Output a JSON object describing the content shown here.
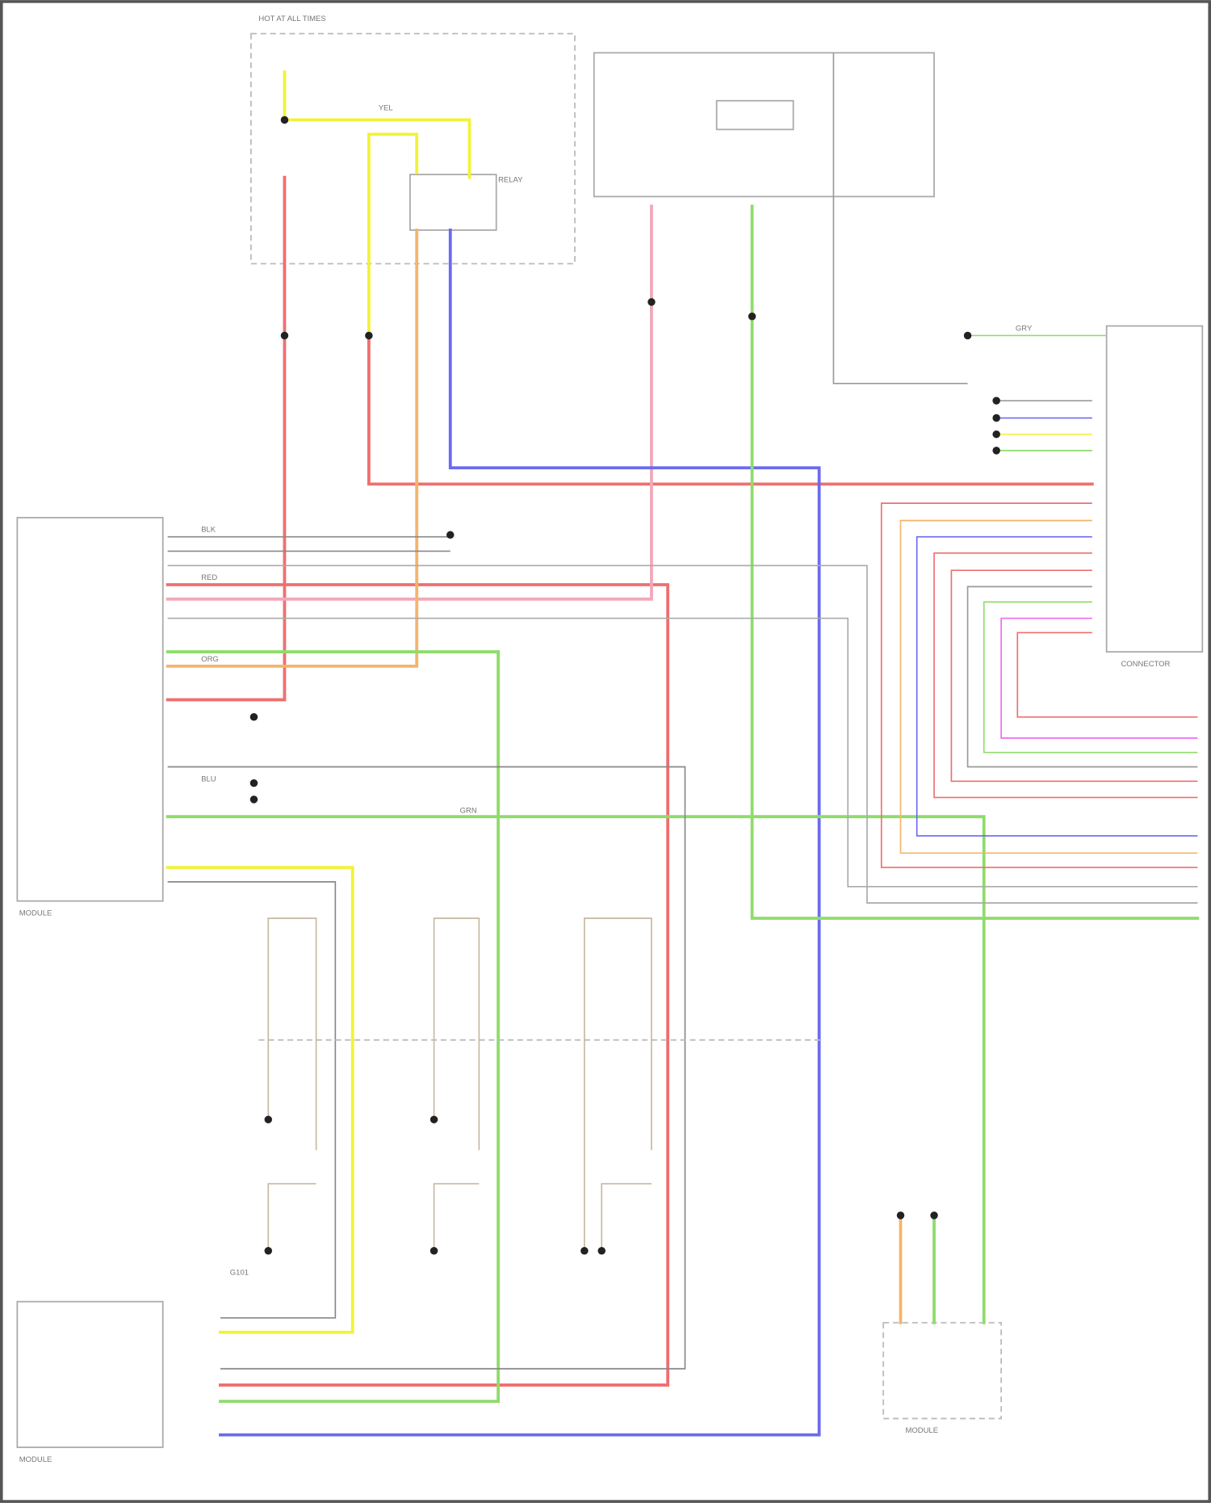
{
  "wire_colors": {
    "yellow": "#f2f23a",
    "red": "#ef6f6f",
    "pink": "#f2a8b8",
    "orange": "#f5b46a",
    "blue": "#6a6af0",
    "green": "#8fdc6a",
    "gray": "#9a9a9a",
    "tan": "#c8b8a0",
    "magenta": "#f06af0",
    "frame": "#555555"
  },
  "labels": {
    "hot_all_times": "HOT AT ALL TIMES",
    "yel": "YEL",
    "red": "RED",
    "org": "ORG",
    "blu": "BLU",
    "grn": "GRN",
    "blk": "BLK",
    "gry": "GRY",
    "relay": "RELAY",
    "ground": "G101",
    "module_left": "MODULE",
    "module_bottom": "MODULE",
    "connector_right": "CONNECTOR",
    "module_bottom_right": "MODULE"
  },
  "footer": ""
}
